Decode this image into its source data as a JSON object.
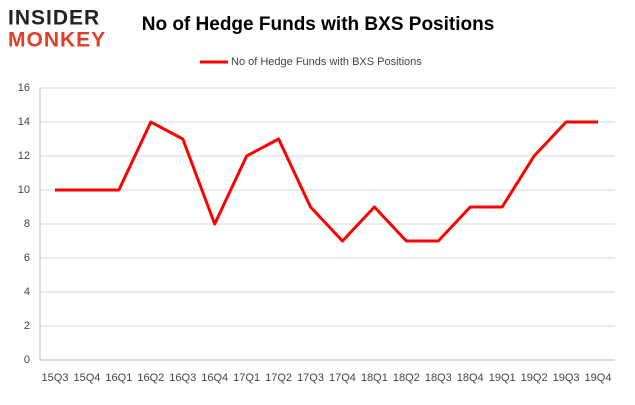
{
  "logo": {
    "line1": "INSIDER",
    "line2": "MONKEY"
  },
  "chart_data": {
    "type": "line",
    "title": "No of Hedge Funds with BXS Positions",
    "categories": [
      "15Q3",
      "15Q4",
      "16Q1",
      "16Q2",
      "16Q3",
      "16Q4",
      "17Q1",
      "17Q2",
      "17Q3",
      "17Q4",
      "18Q1",
      "18Q2",
      "18Q3",
      "18Q4",
      "19Q1",
      "19Q2",
      "19Q3",
      "19Q4"
    ],
    "series": [
      {
        "name": "No of Hedge Funds with BXS Positions",
        "color": "#ff0000",
        "values": [
          10,
          10,
          10,
          14,
          13,
          8,
          12,
          13,
          9,
          7,
          9,
          7,
          7,
          9,
          9,
          12,
          14,
          14
        ]
      }
    ],
    "ylim": [
      0,
      16
    ],
    "yticks": [
      0,
      2,
      4,
      6,
      8,
      10,
      12,
      14,
      16
    ],
    "grid": true,
    "legend": "top"
  }
}
